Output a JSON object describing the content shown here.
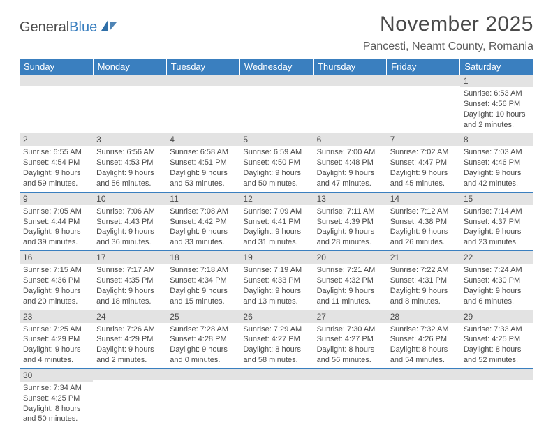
{
  "brand": {
    "first": "General",
    "second": "Blue"
  },
  "colors": {
    "header_bg": "#3a7fbf",
    "header_text": "#ffffff",
    "daynum_bg": "#e3e3e3",
    "row_divider": "#3a7fbf",
    "body_text": "#4a4a4a",
    "logo_accent": "#3a7fbf"
  },
  "title": "November 2025",
  "location": "Pancesti, Neamt County, Romania",
  "weekdays": [
    "Sunday",
    "Monday",
    "Tuesday",
    "Wednesday",
    "Thursday",
    "Friday",
    "Saturday"
  ],
  "weeks": [
    [
      {
        "day": "",
        "sunrise": "",
        "sunset": "",
        "daylight": ""
      },
      {
        "day": "",
        "sunrise": "",
        "sunset": "",
        "daylight": ""
      },
      {
        "day": "",
        "sunrise": "",
        "sunset": "",
        "daylight": ""
      },
      {
        "day": "",
        "sunrise": "",
        "sunset": "",
        "daylight": ""
      },
      {
        "day": "",
        "sunrise": "",
        "sunset": "",
        "daylight": ""
      },
      {
        "day": "",
        "sunrise": "",
        "sunset": "",
        "daylight": ""
      },
      {
        "day": "1",
        "sunrise": "Sunrise: 6:53 AM",
        "sunset": "Sunset: 4:56 PM",
        "daylight": "Daylight: 10 hours and 2 minutes."
      }
    ],
    [
      {
        "day": "2",
        "sunrise": "Sunrise: 6:55 AM",
        "sunset": "Sunset: 4:54 PM",
        "daylight": "Daylight: 9 hours and 59 minutes."
      },
      {
        "day": "3",
        "sunrise": "Sunrise: 6:56 AM",
        "sunset": "Sunset: 4:53 PM",
        "daylight": "Daylight: 9 hours and 56 minutes."
      },
      {
        "day": "4",
        "sunrise": "Sunrise: 6:58 AM",
        "sunset": "Sunset: 4:51 PM",
        "daylight": "Daylight: 9 hours and 53 minutes."
      },
      {
        "day": "5",
        "sunrise": "Sunrise: 6:59 AM",
        "sunset": "Sunset: 4:50 PM",
        "daylight": "Daylight: 9 hours and 50 minutes."
      },
      {
        "day": "6",
        "sunrise": "Sunrise: 7:00 AM",
        "sunset": "Sunset: 4:48 PM",
        "daylight": "Daylight: 9 hours and 47 minutes."
      },
      {
        "day": "7",
        "sunrise": "Sunrise: 7:02 AM",
        "sunset": "Sunset: 4:47 PM",
        "daylight": "Daylight: 9 hours and 45 minutes."
      },
      {
        "day": "8",
        "sunrise": "Sunrise: 7:03 AM",
        "sunset": "Sunset: 4:46 PM",
        "daylight": "Daylight: 9 hours and 42 minutes."
      }
    ],
    [
      {
        "day": "9",
        "sunrise": "Sunrise: 7:05 AM",
        "sunset": "Sunset: 4:44 PM",
        "daylight": "Daylight: 9 hours and 39 minutes."
      },
      {
        "day": "10",
        "sunrise": "Sunrise: 7:06 AM",
        "sunset": "Sunset: 4:43 PM",
        "daylight": "Daylight: 9 hours and 36 minutes."
      },
      {
        "day": "11",
        "sunrise": "Sunrise: 7:08 AM",
        "sunset": "Sunset: 4:42 PM",
        "daylight": "Daylight: 9 hours and 33 minutes."
      },
      {
        "day": "12",
        "sunrise": "Sunrise: 7:09 AM",
        "sunset": "Sunset: 4:41 PM",
        "daylight": "Daylight: 9 hours and 31 minutes."
      },
      {
        "day": "13",
        "sunrise": "Sunrise: 7:11 AM",
        "sunset": "Sunset: 4:39 PM",
        "daylight": "Daylight: 9 hours and 28 minutes."
      },
      {
        "day": "14",
        "sunrise": "Sunrise: 7:12 AM",
        "sunset": "Sunset: 4:38 PM",
        "daylight": "Daylight: 9 hours and 26 minutes."
      },
      {
        "day": "15",
        "sunrise": "Sunrise: 7:14 AM",
        "sunset": "Sunset: 4:37 PM",
        "daylight": "Daylight: 9 hours and 23 minutes."
      }
    ],
    [
      {
        "day": "16",
        "sunrise": "Sunrise: 7:15 AM",
        "sunset": "Sunset: 4:36 PM",
        "daylight": "Daylight: 9 hours and 20 minutes."
      },
      {
        "day": "17",
        "sunrise": "Sunrise: 7:17 AM",
        "sunset": "Sunset: 4:35 PM",
        "daylight": "Daylight: 9 hours and 18 minutes."
      },
      {
        "day": "18",
        "sunrise": "Sunrise: 7:18 AM",
        "sunset": "Sunset: 4:34 PM",
        "daylight": "Daylight: 9 hours and 15 minutes."
      },
      {
        "day": "19",
        "sunrise": "Sunrise: 7:19 AM",
        "sunset": "Sunset: 4:33 PM",
        "daylight": "Daylight: 9 hours and 13 minutes."
      },
      {
        "day": "20",
        "sunrise": "Sunrise: 7:21 AM",
        "sunset": "Sunset: 4:32 PM",
        "daylight": "Daylight: 9 hours and 11 minutes."
      },
      {
        "day": "21",
        "sunrise": "Sunrise: 7:22 AM",
        "sunset": "Sunset: 4:31 PM",
        "daylight": "Daylight: 9 hours and 8 minutes."
      },
      {
        "day": "22",
        "sunrise": "Sunrise: 7:24 AM",
        "sunset": "Sunset: 4:30 PM",
        "daylight": "Daylight: 9 hours and 6 minutes."
      }
    ],
    [
      {
        "day": "23",
        "sunrise": "Sunrise: 7:25 AM",
        "sunset": "Sunset: 4:29 PM",
        "daylight": "Daylight: 9 hours and 4 minutes."
      },
      {
        "day": "24",
        "sunrise": "Sunrise: 7:26 AM",
        "sunset": "Sunset: 4:29 PM",
        "daylight": "Daylight: 9 hours and 2 minutes."
      },
      {
        "day": "25",
        "sunrise": "Sunrise: 7:28 AM",
        "sunset": "Sunset: 4:28 PM",
        "daylight": "Daylight: 9 hours and 0 minutes."
      },
      {
        "day": "26",
        "sunrise": "Sunrise: 7:29 AM",
        "sunset": "Sunset: 4:27 PM",
        "daylight": "Daylight: 8 hours and 58 minutes."
      },
      {
        "day": "27",
        "sunrise": "Sunrise: 7:30 AM",
        "sunset": "Sunset: 4:27 PM",
        "daylight": "Daylight: 8 hours and 56 minutes."
      },
      {
        "day": "28",
        "sunrise": "Sunrise: 7:32 AM",
        "sunset": "Sunset: 4:26 PM",
        "daylight": "Daylight: 8 hours and 54 minutes."
      },
      {
        "day": "29",
        "sunrise": "Sunrise: 7:33 AM",
        "sunset": "Sunset: 4:25 PM",
        "daylight": "Daylight: 8 hours and 52 minutes."
      }
    ],
    [
      {
        "day": "30",
        "sunrise": "Sunrise: 7:34 AM",
        "sunset": "Sunset: 4:25 PM",
        "daylight": "Daylight: 8 hours and 50 minutes."
      },
      {
        "day": "",
        "sunrise": "",
        "sunset": "",
        "daylight": ""
      },
      {
        "day": "",
        "sunrise": "",
        "sunset": "",
        "daylight": ""
      },
      {
        "day": "",
        "sunrise": "",
        "sunset": "",
        "daylight": ""
      },
      {
        "day": "",
        "sunrise": "",
        "sunset": "",
        "daylight": ""
      },
      {
        "day": "",
        "sunrise": "",
        "sunset": "",
        "daylight": ""
      },
      {
        "day": "",
        "sunrise": "",
        "sunset": "",
        "daylight": ""
      }
    ]
  ]
}
